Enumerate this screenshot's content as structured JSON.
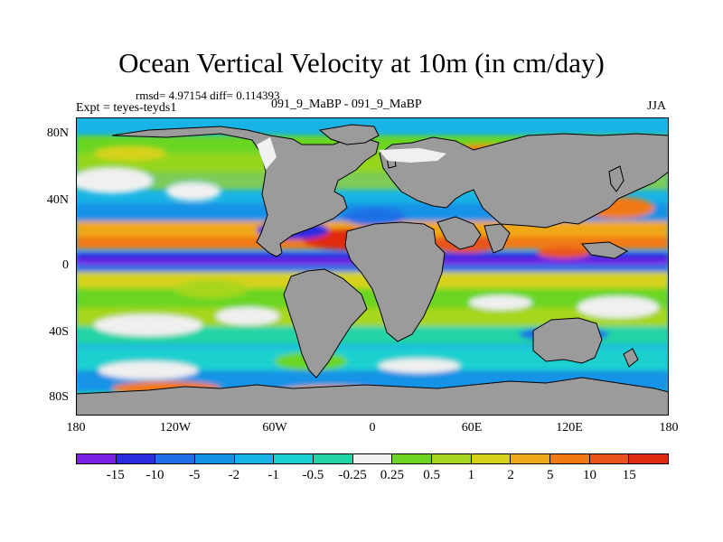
{
  "header": {
    "title": "Ocean Vertical Velocity at 10m (in cm/day)",
    "stats": "rmsd= 4.97154 diff= 0.114393",
    "experiment": "Expt = teyes-teyds1",
    "comparison": "091_9_MaBP - 091_9_MaBP",
    "season": "JJA"
  },
  "axes": {
    "lat_labels": [
      "80N",
      "40N",
      "0",
      "40S",
      "80S"
    ],
    "lon_labels": [
      "180",
      "120W",
      "60W",
      "0",
      "60E",
      "120E",
      "180"
    ]
  },
  "colorbar": {
    "labels": [
      "-15",
      "-10",
      "-5",
      "-2",
      "-1",
      "-0.5",
      "-0.25",
      "0.25",
      "0.5",
      "1",
      "2",
      "5",
      "10",
      "15"
    ],
    "colors": [
      "#7a1fe6",
      "#2b2be0",
      "#1f6fe6",
      "#1592e6",
      "#18b4e6",
      "#1ad0d0",
      "#22d4a6",
      "#f0f0f0",
      "#6ad622",
      "#a8d61e",
      "#d6d21a",
      "#f0a818",
      "#f07a14",
      "#e8541a",
      "#e02a10"
    ]
  },
  "map_colors": {
    "land": "#9b9b9b",
    "ice": "#f0f0f0"
  }
}
